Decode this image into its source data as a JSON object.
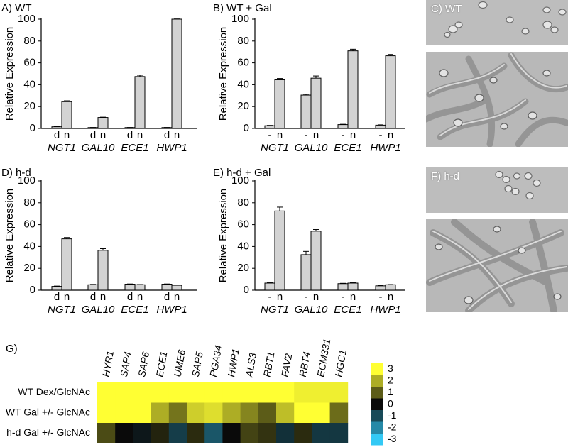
{
  "panels": {
    "A": {
      "label": "A) WT"
    },
    "B": {
      "label": "B) WT + Gal"
    },
    "C": {
      "label": "C) WT"
    },
    "D": {
      "label": "D) h-d"
    },
    "E": {
      "label": "E) h-d + Gal"
    },
    "F": {
      "label": "F) h-d"
    },
    "G": {
      "label": "G)"
    }
  },
  "colors": {
    "bar_fill": "#d3d3d3",
    "bar_stroke": "#000000",
    "photo_background": "#bdbdbd",
    "heatmap_yellow": "#ffff33",
    "heatmap_black": "#0a0a0a",
    "heatmap_cyan": "#33c9f5"
  },
  "chart_data": [
    {
      "panel": "A",
      "type": "bar",
      "ylabel": "Relative Expression",
      "ylim": [
        0,
        100
      ],
      "yticks": [
        0,
        20,
        40,
        60,
        80,
        100
      ],
      "categories": [
        "NGT1",
        "GAL10",
        "ECE1",
        "HWP1"
      ],
      "bar_labels": [
        "d",
        "n"
      ],
      "values": [
        [
          1.5,
          24.5
        ],
        [
          0.8,
          10
        ],
        [
          0.8,
          47.5
        ],
        [
          0.8,
          100
        ]
      ],
      "errors": [
        [
          0.2,
          0.8
        ],
        [
          0.1,
          0.3
        ],
        [
          0.1,
          1.2
        ],
        [
          0.1,
          0.2
        ]
      ]
    },
    {
      "panel": "B",
      "type": "bar",
      "ylabel": "Relative Expression",
      "ylim": [
        0,
        100
      ],
      "yticks": [
        0,
        20,
        40,
        60,
        80,
        100
      ],
      "categories": [
        "NGT1",
        "GAL10",
        "ECE1",
        "HWP1"
      ],
      "bar_labels": [
        "-",
        "n"
      ],
      "values": [
        [
          2.5,
          44.5
        ],
        [
          30.5,
          46
        ],
        [
          3.5,
          71
        ],
        [
          3,
          66.5
        ]
      ],
      "errors": [
        [
          0.3,
          1.2
        ],
        [
          0.8,
          2
        ],
        [
          0.3,
          1.5
        ],
        [
          0.3,
          1.2
        ]
      ]
    },
    {
      "panel": "D",
      "type": "bar",
      "ylabel": "Relative Expression",
      "ylim": [
        0,
        100
      ],
      "yticks": [
        0,
        20,
        40,
        60,
        80,
        100
      ],
      "categories": [
        "NGT1",
        "GAL10",
        "ECE1",
        "HWP1"
      ],
      "bar_labels": [
        "d",
        "n"
      ],
      "values": [
        [
          3.5,
          47
        ],
        [
          5,
          36.5
        ],
        [
          5.5,
          5
        ],
        [
          5.5,
          4.5
        ]
      ],
      "errors": [
        [
          0.3,
          1.2
        ],
        [
          0.3,
          1.5
        ],
        [
          0.2,
          0.2
        ],
        [
          0.2,
          0.2
        ]
      ]
    },
    {
      "panel": "E",
      "type": "bar",
      "ylabel": "Relative Expression",
      "ylim": [
        0,
        100
      ],
      "yticks": [
        0,
        20,
        40,
        60,
        80,
        100
      ],
      "categories": [
        "NGT1",
        "GAL10",
        "ECE1",
        "HWP1"
      ],
      "bar_labels": [
        "-",
        "n"
      ],
      "values": [
        [
          6.5,
          72.5
        ],
        [
          32.5,
          54
        ],
        [
          6,
          6.5
        ],
        [
          4,
          5
        ]
      ],
      "errors": [
        [
          0.3,
          3.5
        ],
        [
          3,
          1.5
        ],
        [
          0.3,
          0.3
        ],
        [
          0.2,
          0.2
        ]
      ]
    },
    {
      "panel": "G",
      "type": "heatmap",
      "columns": [
        "HYR1",
        "SAP4",
        "SAP6",
        "ECE1",
        "UME6",
        "SAP5",
        "PGA34",
        "HWP1",
        "ALS3",
        "RBT1",
        "FAV2",
        "RBT4",
        "ECM331",
        "HGC1"
      ],
      "rows": [
        "WT Dex/GlcNAc",
        "WT Gal +/- GlcNAc",
        "h-d Gal +/- GlcNAc"
      ],
      "values": [
        [
          3,
          3,
          3,
          3,
          3,
          3,
          3,
          3,
          3,
          3,
          3,
          2.8,
          2.8,
          2.8
        ],
        [
          3,
          3,
          3,
          2,
          1.3,
          2.4,
          2.6,
          2,
          1.5,
          1,
          2.2,
          3,
          3,
          1.2
        ],
        [
          0.8,
          0,
          -0.2,
          0.3,
          -0.8,
          0.4,
          -1.2,
          0,
          0.7,
          0.5,
          -0.6,
          0.4,
          -0.7,
          -0.7
        ]
      ],
      "scale": {
        "min": -3,
        "max": 3,
        "ticks": [
          "3",
          "2",
          "1",
          "0",
          "-1",
          "-2",
          "-3"
        ]
      }
    }
  ]
}
